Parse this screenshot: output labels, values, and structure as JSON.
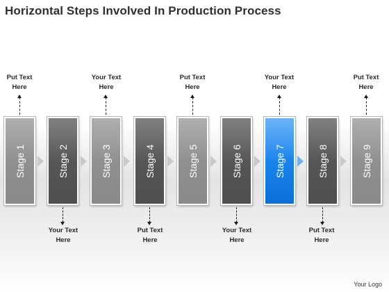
{
  "title": "Horizontal Steps Involved In Production Process",
  "logo": "Your Logo",
  "colors": {
    "light": "#8f8f8f",
    "dark": "#555555",
    "highlight": "#1a84ec"
  },
  "stages": [
    {
      "label": "Stage 1",
      "tone": "light",
      "note": {
        "position": "top",
        "line1": "Put Text",
        "line2": "Here"
      }
    },
    {
      "label": "Stage 2",
      "tone": "dark",
      "note": {
        "position": "bottom",
        "line1": "Your Text",
        "line2": "Here"
      }
    },
    {
      "label": "Stage 3",
      "tone": "light",
      "note": {
        "position": "top",
        "line1": "Your Text",
        "line2": "Here"
      }
    },
    {
      "label": "Stage 4",
      "tone": "dark",
      "note": {
        "position": "bottom",
        "line1": "Put Text",
        "line2": "Here"
      }
    },
    {
      "label": "Stage 5",
      "tone": "light",
      "note": {
        "position": "top",
        "line1": "Put Text",
        "line2": "Here"
      }
    },
    {
      "label": "Stage 6",
      "tone": "dark",
      "note": {
        "position": "bottom",
        "line1": "Your Text",
        "line2": "Here"
      }
    },
    {
      "label": "Stage 7",
      "tone": "blue",
      "note": {
        "position": "top",
        "line1": "Your Text",
        "line2": "Here"
      }
    },
    {
      "label": "Stage 8",
      "tone": "dark",
      "note": {
        "position": "bottom",
        "line1": "Put Text",
        "line2": "Here"
      }
    },
    {
      "label": "Stage 9",
      "tone": "light",
      "note": {
        "position": "top",
        "line1": "Put Text",
        "line2": "Here"
      }
    }
  ]
}
